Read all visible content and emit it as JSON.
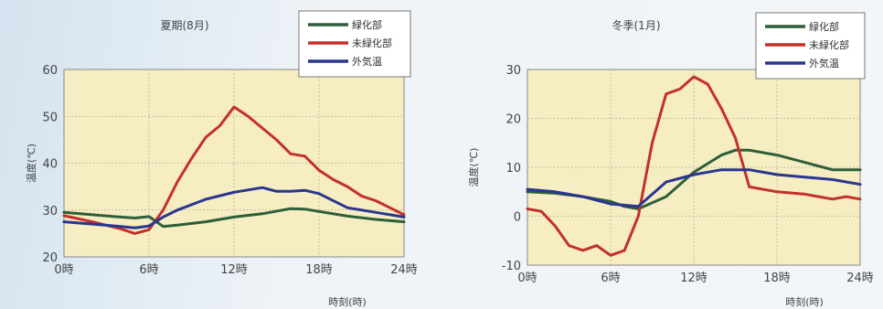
{
  "chart_data": [
    {
      "type": "line",
      "title": "夏期(8月)",
      "xlabel": "時刻(時)",
      "ylabel": "温度(℃)",
      "xlim": [
        0,
        24
      ],
      "ylim": [
        20,
        60
      ],
      "x_ticks": [
        0,
        6,
        12,
        18,
        24
      ],
      "x_tick_labels": [
        "0時",
        "6時",
        "12時",
        "18時",
        "24時"
      ],
      "y_ticks": [
        20,
        30,
        40,
        50,
        60
      ],
      "y_tick_labels": [
        "20",
        "30",
        "40",
        "50",
        "60"
      ],
      "grid": true,
      "legend_position": "top-right",
      "series": [
        {
          "name": "緑化部",
          "color": "#2d5e3a",
          "x": [
            0,
            2,
            4,
            5,
            6,
            7,
            8,
            10,
            12,
            14,
            16,
            17,
            18,
            20,
            22,
            24
          ],
          "y": [
            29.5,
            29,
            28.5,
            28.3,
            28.6,
            26.5,
            26.8,
            27.5,
            28.5,
            29.2,
            30.3,
            30.2,
            29.7,
            28.7,
            28,
            27.5
          ]
        },
        {
          "name": "未緑化部",
          "color": "#c4302b",
          "x": [
            0,
            2,
            4,
            5,
            6,
            7,
            8,
            9,
            10,
            11,
            12,
            13,
            14,
            15,
            16,
            17,
            18,
            19,
            20,
            21,
            22,
            23,
            24
          ],
          "y": [
            28.8,
            27.5,
            26,
            25,
            25.8,
            30,
            36,
            41,
            45.5,
            48,
            52,
            50,
            47.5,
            45,
            42,
            41.5,
            38.5,
            36.5,
            35,
            33,
            32,
            30.5,
            29
          ]
        },
        {
          "name": "外気温",
          "color": "#2a3590",
          "x": [
            0,
            2,
            4,
            5,
            6,
            7,
            8,
            10,
            12,
            14,
            15,
            16,
            17,
            18,
            20,
            22,
            24
          ],
          "y": [
            27.5,
            27,
            26.5,
            26.2,
            26.6,
            28.5,
            30,
            32.3,
            33.8,
            34.8,
            34,
            34,
            34.2,
            33.5,
            30.5,
            29.5,
            28.5
          ]
        }
      ]
    },
    {
      "type": "line",
      "title": "冬季(1月)",
      "xlabel": "時刻(時)",
      "ylabel": "温度(℃)",
      "xlim": [
        0,
        24
      ],
      "ylim": [
        -10,
        30
      ],
      "x_ticks": [
        0,
        6,
        12,
        18,
        24
      ],
      "x_tick_labels": [
        "0時",
        "6時",
        "12時",
        "18時",
        "24時"
      ],
      "y_ticks": [
        -10,
        0,
        10,
        20,
        30
      ],
      "y_tick_labels": [
        "-10",
        "0",
        "10",
        "20",
        "30"
      ],
      "grid": true,
      "legend_position": "top-right",
      "series": [
        {
          "name": "緑化部",
          "color": "#2d5e3a",
          "x": [
            0,
            2,
            4,
            6,
            7,
            8,
            10,
            12,
            14,
            15,
            16,
            18,
            20,
            22,
            24
          ],
          "y": [
            5,
            4.7,
            4,
            3,
            2,
            1.5,
            4,
            9,
            12.5,
            13.5,
            13.5,
            12.5,
            11,
            9.5,
            9.5
          ]
        },
        {
          "name": "未緑化部",
          "color": "#c4302b",
          "x": [
            0,
            1,
            2,
            3,
            4,
            5,
            6,
            7,
            8,
            9,
            10,
            11,
            12,
            13,
            14,
            15,
            16,
            18,
            20,
            21,
            22,
            23,
            24
          ],
          "y": [
            1.5,
            1,
            -2,
            -6,
            -7,
            -6,
            -8,
            -7,
            0,
            15,
            25,
            26,
            28.5,
            27,
            22,
            16,
            6,
            5,
            4.5,
            4,
            3.5,
            4,
            3.5
          ]
        },
        {
          "name": "外気温",
          "color": "#2a3590",
          "x": [
            0,
            2,
            4,
            6,
            8,
            10,
            12,
            14,
            16,
            18,
            20,
            22,
            24
          ],
          "y": [
            5.5,
            5,
            4,
            2.5,
            2,
            7,
            8.5,
            9.5,
            9.5,
            8.5,
            8,
            7.5,
            6.5
          ]
        }
      ]
    }
  ]
}
